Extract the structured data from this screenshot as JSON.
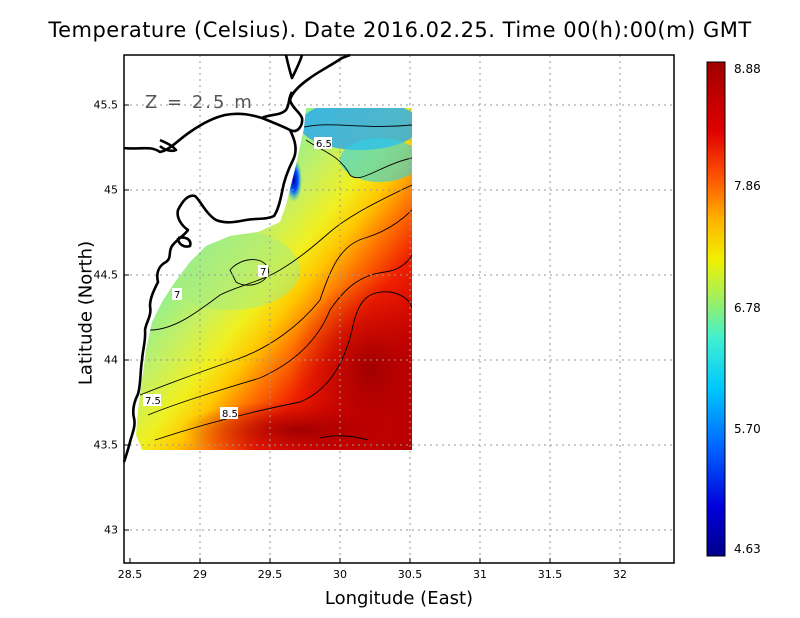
{
  "title": "Temperature (Celsius). Date 2016.02.25. Time 00(h):00(m)  GMT",
  "depth_label": "Z = 2.5 m",
  "xlabel": "Longitude (East)",
  "ylabel": "Latitude (North)",
  "x_ticks": [
    "28.5",
    "29",
    "29.5",
    "30",
    "30.5",
    "31",
    "31.5",
    "32"
  ],
  "y_ticks": [
    "45.5",
    "45",
    "44.5",
    "44",
    "43.5",
    "43"
  ],
  "colorbar": {
    "ticks": [
      "8.88",
      "7.86",
      "6.78",
      "5.70",
      "4.63"
    ],
    "colors": [
      "#a00000",
      "#e00000",
      "#ff5a00",
      "#ffb400",
      "#f0f000",
      "#a0f050",
      "#40f0c0",
      "#00c8ff",
      "#0064ff",
      "#0000c8",
      "#00008c"
    ]
  },
  "contour_labels": [
    "6.5",
    "7",
    "7",
    "7.5",
    "8.5"
  ],
  "chart_data": {
    "type": "heatmap",
    "title": "Temperature (Celsius). Date 2016.02.25. Time 00(h):00(m)  GMT",
    "xlabel": "Longitude (East)",
    "ylabel": "Latitude (North)",
    "xlim": [
      28.5,
      32.4
    ],
    "ylim": [
      42.8,
      45.8
    ],
    "value_range": [
      4.63,
      8.88
    ],
    "grid": true,
    "contour_levels": [
      6.5,
      7,
      7.5,
      8.5
    ]
  }
}
